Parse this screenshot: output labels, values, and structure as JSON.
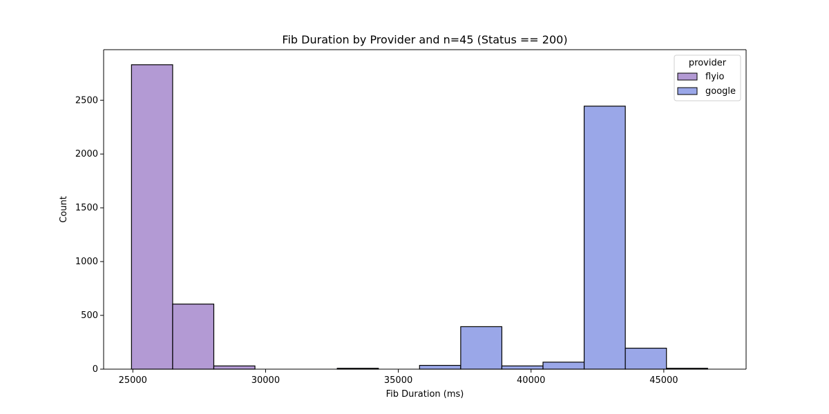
{
  "chart_data": {
    "type": "histogram",
    "title": "Fib Duration by Provider and n=45 (Status == 200)",
    "xlabel": "Fib Duration (ms)",
    "ylabel": "Count",
    "xlim": [
      23900,
      48100
    ],
    "ylim": [
      0,
      2970
    ],
    "x_ticks": [
      25000,
      30000,
      35000,
      40000,
      45000
    ],
    "y_ticks": [
      0,
      500,
      1000,
      1500,
      2000,
      2500
    ],
    "grid": false,
    "legend": {
      "title": "provider",
      "placement": "upper right"
    },
    "series": [
      {
        "name": "flyio",
        "color": "#b39ad4",
        "bins": [
          {
            "start": 24950,
            "end": 26500,
            "value": 2830
          },
          {
            "start": 26500,
            "end": 28050,
            "value": 605
          },
          {
            "start": 28050,
            "end": 29600,
            "value": 30
          }
        ]
      },
      {
        "name": "google",
        "color": "#9aa7e8",
        "bins": [
          {
            "start": 32700,
            "end": 34250,
            "value": 8
          },
          {
            "start": 35800,
            "end": 37350,
            "value": 35
          },
          {
            "start": 37350,
            "end": 38900,
            "value": 395
          },
          {
            "start": 38900,
            "end": 40450,
            "value": 30
          },
          {
            "start": 40450,
            "end": 42000,
            "value": 65
          },
          {
            "start": 42000,
            "end": 43550,
            "value": 2445
          },
          {
            "start": 43550,
            "end": 45100,
            "value": 195
          },
          {
            "start": 45100,
            "end": 46650,
            "value": 8
          }
        ]
      }
    ]
  }
}
